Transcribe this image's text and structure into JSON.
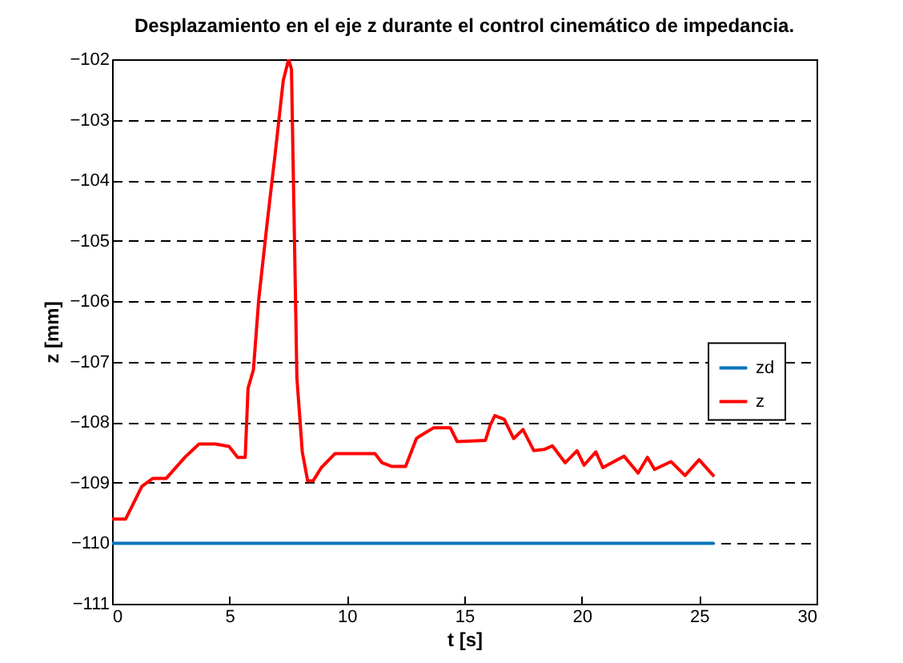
{
  "chart_data": {
    "type": "line",
    "title": "Desplazamiento en el eje z durante el control cinemático de impedancia.",
    "xlabel": "t [s]",
    "ylabel": "z [mm]",
    "xlim": [
      0,
      30
    ],
    "xticks": [
      0,
      5,
      10,
      15,
      20,
      25,
      30
    ],
    "ylim": [
      -111,
      -102
    ],
    "yticks": [
      -111,
      -110,
      -109,
      -108,
      -107,
      -106,
      -105,
      -104,
      -103,
      -102
    ],
    "grid": "y",
    "legend": "right",
    "line_style": "solid",
    "marker": "none",
    "series": [
      {
        "name": "zd",
        "color": "#0072bd",
        "x": [
          0,
          25.6
        ],
        "values": [
          -110,
          -110
        ]
      },
      {
        "name": "z",
        "color": "#ff0000",
        "x": [
          0,
          0.58,
          1.27,
          1.73,
          2.3,
          3.1,
          3.7,
          4.4,
          4.98,
          5.35,
          5.67,
          5.79,
          6.02,
          6.25,
          6.6,
          6.94,
          7.29,
          7.52,
          7.64,
          7.87,
          8.1,
          8.33,
          8.56,
          8.91,
          9.49,
          11.2,
          11.5,
          11.9,
          12.5,
          12.96,
          13.1,
          13.7,
          14.4,
          14.7,
          15.9,
          16.1,
          16.3,
          16.7,
          17.1,
          17.5,
          17.96,
          18.4,
          18.75,
          19.3,
          19.8,
          20.1,
          20.6,
          20.9,
          21.8,
          22.4,
          22.8,
          23.1,
          23.8,
          24.4,
          25.0,
          25.6
        ],
        "values": [
          -109.6,
          -109.6,
          -109.06,
          -108.93,
          -108.93,
          -108.58,
          -108.36,
          -108.36,
          -108.4,
          -108.58,
          -108.58,
          -107.44,
          -107.13,
          -105.95,
          -104.72,
          -103.58,
          -102.35,
          -102,
          -102.17,
          -107.26,
          -108.49,
          -108.97,
          -108.97,
          -108.75,
          -108.52,
          -108.52,
          -108.67,
          -108.73,
          -108.73,
          -108.27,
          -108.23,
          -108.09,
          -108.09,
          -108.32,
          -108.3,
          -108.05,
          -107.89,
          -107.95,
          -108.27,
          -108.12,
          -108.47,
          -108.45,
          -108.39,
          -108.67,
          -108.47,
          -108.71,
          -108.49,
          -108.75,
          -108.56,
          -108.84,
          -108.58,
          -108.78,
          -108.65,
          -108.88,
          -108.62,
          -108.88
        ]
      }
    ]
  }
}
